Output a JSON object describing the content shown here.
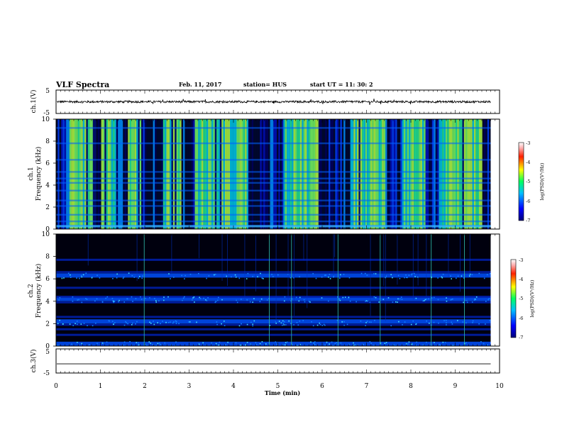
{
  "header": {
    "title": "VLF Spectra",
    "date": "Feb. 11, 2017",
    "station": "station= HUS",
    "start": "start UT =   11: 30: 2"
  },
  "chart_data": [
    {
      "type": "line",
      "name": "ch1-waveform",
      "ylabel": "ch.1(V)",
      "ylim": [
        -5,
        5
      ],
      "yticks": [
        "5",
        "-5"
      ],
      "xlim": [
        0,
        10
      ],
      "x_extent_min": 9.8,
      "signal": "noisy trace around 0 V, amplitude about 0.5 V with spikes to 1.5 V"
    },
    {
      "type": "heatmap",
      "name": "ch1-spectrogram",
      "ylabel_lines": [
        "ch.1",
        "Frequency (kHz)"
      ],
      "ylim": [
        0,
        10
      ],
      "yticks": [
        "0",
        "2",
        "4",
        "6",
        "8",
        "10"
      ],
      "xlim": [
        0,
        10
      ],
      "colorbar": {
        "range": [
          -7,
          -3
        ],
        "ticks": [
          "-3",
          "-4",
          "-5",
          "-6",
          "-7"
        ],
        "label": "log(PSD)(V²/Hz)"
      },
      "bright_intervals_min": [
        [
          0.3,
          0.9
        ],
        [
          1.0,
          1.35
        ],
        [
          1.6,
          1.9
        ],
        [
          2.4,
          2.8
        ],
        [
          3.1,
          4.3
        ],
        [
          5.1,
          5.9
        ],
        [
          6.6,
          7.4
        ],
        [
          7.8,
          8.3
        ],
        [
          8.6,
          9.6
        ]
      ],
      "horizontal_bands_khz": [
        0.3,
        0.7,
        1.3,
        2.1,
        2.6,
        3.5,
        4.2,
        4.6,
        5.2,
        6.3,
        7.8,
        9.2
      ]
    },
    {
      "type": "heatmap",
      "name": "ch2-spectrogram",
      "ylabel_lines": [
        "ch.2",
        "Frequency (kHz)"
      ],
      "ylim": [
        0,
        10
      ],
      "yticks": [
        "0",
        "2",
        "4",
        "6",
        "8",
        "10"
      ],
      "xlim": [
        0,
        10
      ],
      "colorbar": {
        "range": [
          -7,
          -3
        ],
        "ticks": [
          "-3",
          "-4",
          "-5",
          "-6",
          "-7"
        ],
        "label": "log(PSD)(V²/Hz)"
      },
      "horizontal_bands_khz": [
        0.2,
        1.0,
        1.5,
        1.9,
        2.2,
        2.6,
        3.9,
        4.2,
        4.4,
        5.2,
        6.3,
        6.6,
        7.7
      ],
      "vertical_spikes_min": [
        1.98,
        4.8,
        5.3,
        6.35,
        7.3,
        8.45,
        9.2
      ]
    },
    {
      "type": "line",
      "name": "ch3-waveform",
      "ylabel": "ch.3(V)",
      "ylim": [
        -5,
        5
      ],
      "yticks": [
        "5",
        "-5"
      ],
      "xlim": [
        0,
        10
      ],
      "x_extent_min": 9.8,
      "signal": "flat line near -1 V"
    }
  ],
  "xaxis": {
    "label": "Time (min)",
    "ticks": [
      "0",
      "1",
      "2",
      "3",
      "4",
      "5",
      "6",
      "7",
      "8",
      "9",
      "10"
    ]
  }
}
